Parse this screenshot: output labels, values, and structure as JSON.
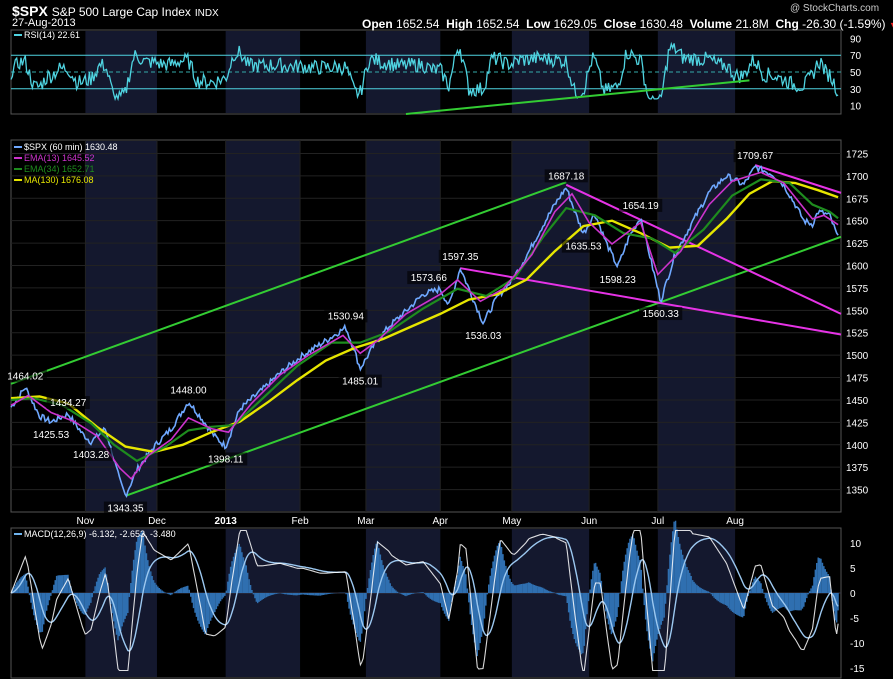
{
  "header": {
    "symbol": "$SPX",
    "name": "S&P 500 Large Cap Index",
    "exchange": "INDX",
    "date": "27-Aug-2013",
    "watermark": "@ StockCharts.com",
    "quote": {
      "open_label": "Open",
      "open": "1652.54",
      "high_label": "High",
      "high": "1652.54",
      "low_label": "Low",
      "low": "1629.05",
      "close_label": "Close",
      "close": "1630.48",
      "volume_label": "Volume",
      "volume": "21.8M",
      "chg_label": "Chg",
      "chg": "-26.30 (-1.59%)",
      "chg_marker": "▼"
    }
  },
  "colors": {
    "price": "#6fa8ff",
    "ema13": "#cc33cc",
    "ema34": "#1e8c1e",
    "ma130": "#e6e600",
    "channel": "#33cc33",
    "trend": "#e633e6",
    "rsi": "#4fd3e0",
    "macd": "#6fb3ee",
    "grid": "#222",
    "band": "#14182e"
  },
  "chart_data": [
    {
      "type": "line",
      "panel": "rsi",
      "legend": "RSI(14) 22.61",
      "series": [
        {
          "name": "RSI(14)",
          "last": 22.61
        }
      ],
      "yticks": [
        10,
        30,
        50,
        70,
        90
      ],
      "ylim": [
        0,
        100
      ],
      "levels": [
        30,
        50,
        70
      ]
    },
    {
      "type": "line",
      "panel": "price",
      "legend": [
        {
          "key": "price",
          "label": "$SPX (60 min) 1630.48"
        },
        {
          "key": "ema13",
          "label": "EMA(13) 1645.52"
        },
        {
          "key": "ema34",
          "label": "EMA(34) 1652.71"
        },
        {
          "key": "ma130",
          "label": "MA(130) 1676.08"
        }
      ],
      "xlim": [
        0,
        290
      ],
      "ylim": [
        1325,
        1740
      ],
      "yticks": [
        1350,
        1375,
        1400,
        1425,
        1450,
        1475,
        1500,
        1525,
        1550,
        1575,
        1600,
        1625,
        1650,
        1675,
        1700,
        1725
      ],
      "x_labels": [
        {
          "label": "Nov",
          "x": 26,
          "bold": false
        },
        {
          "label": "Dec",
          "x": 51,
          "bold": false
        },
        {
          "label": "2013",
          "x": 75,
          "bold": true
        },
        {
          "label": "Feb",
          "x": 101,
          "bold": false
        },
        {
          "label": "Mar",
          "x": 124,
          "bold": false
        },
        {
          "label": "Apr",
          "x": 150,
          "bold": false
        },
        {
          "label": "May",
          "x": 175,
          "bold": false
        },
        {
          "label": "Jun",
          "x": 202,
          "bold": false
        },
        {
          "label": "Jul",
          "x": 226,
          "bold": false
        },
        {
          "label": "Aug",
          "x": 253,
          "bold": false
        }
      ],
      "month_bands": [
        [
          26,
          51
        ],
        [
          75,
          101
        ],
        [
          124,
          150
        ],
        [
          175,
          202
        ],
        [
          226,
          253
        ]
      ],
      "price_points": [
        [
          0,
          1442
        ],
        [
          5,
          1464.02
        ],
        [
          10,
          1432
        ],
        [
          14,
          1425.53
        ],
        [
          20,
          1434.27
        ],
        [
          25,
          1412
        ],
        [
          28,
          1403.28
        ],
        [
          33,
          1418
        ],
        [
          38,
          1360
        ],
        [
          40,
          1343.35
        ],
        [
          44,
          1372
        ],
        [
          50,
          1398
        ],
        [
          56,
          1418
        ],
        [
          62,
          1448
        ],
        [
          66,
          1432
        ],
        [
          71,
          1410
        ],
        [
          75,
          1398.11
        ],
        [
          80,
          1440
        ],
        [
          88,
          1462
        ],
        [
          94,
          1480
        ],
        [
          102,
          1500
        ],
        [
          110,
          1516
        ],
        [
          117,
          1530.94
        ],
        [
          120,
          1505
        ],
        [
          122,
          1485.01
        ],
        [
          127,
          1512
        ],
        [
          132,
          1532
        ],
        [
          138,
          1549
        ],
        [
          144,
          1568
        ],
        [
          150,
          1573.66
        ],
        [
          153,
          1555
        ],
        [
          157,
          1597.35
        ],
        [
          160,
          1574
        ],
        [
          165,
          1536.03
        ],
        [
          170,
          1565
        ],
        [
          175,
          1583
        ],
        [
          180,
          1610
        ],
        [
          185,
          1640
        ],
        [
          190,
          1668
        ],
        [
          194,
          1687.18
        ],
        [
          197,
          1660
        ],
        [
          200,
          1635.53
        ],
        [
          204,
          1658
        ],
        [
          208,
          1625
        ],
        [
          212,
          1598.23
        ],
        [
          216,
          1632
        ],
        [
          220,
          1654.19
        ],
        [
          224,
          1600
        ],
        [
          227,
          1560.33
        ],
        [
          232,
          1612
        ],
        [
          238,
          1648
        ],
        [
          244,
          1682
        ],
        [
          250,
          1700
        ],
        [
          256,
          1690
        ],
        [
          260,
          1709.67
        ],
        [
          266,
          1702
        ],
        [
          270,
          1690
        ],
        [
          274,
          1668
        ],
        [
          277,
          1650
        ],
        [
          280,
          1646
        ],
        [
          282,
          1660
        ],
        [
          286,
          1656
        ],
        [
          289,
          1630.48
        ]
      ],
      "ema13_points": [
        [
          0,
          1444
        ],
        [
          6,
          1455
        ],
        [
          14,
          1436
        ],
        [
          22,
          1426
        ],
        [
          30,
          1410
        ],
        [
          38,
          1374
        ],
        [
          42,
          1362
        ],
        [
          48,
          1388
        ],
        [
          56,
          1406
        ],
        [
          62,
          1430
        ],
        [
          70,
          1418
        ],
        [
          76,
          1414
        ],
        [
          84,
          1446
        ],
        [
          94,
          1478
        ],
        [
          104,
          1500
        ],
        [
          116,
          1522
        ],
        [
          122,
          1502
        ],
        [
          128,
          1516
        ],
        [
          138,
          1546
        ],
        [
          150,
          1568
        ],
        [
          156,
          1584
        ],
        [
          164,
          1560
        ],
        [
          172,
          1574
        ],
        [
          182,
          1612
        ],
        [
          190,
          1660
        ],
        [
          196,
          1680
        ],
        [
          202,
          1648
        ],
        [
          210,
          1624
        ],
        [
          220,
          1648
        ],
        [
          226,
          1590
        ],
        [
          234,
          1616
        ],
        [
          244,
          1668
        ],
        [
          252,
          1694
        ],
        [
          262,
          1704
        ],
        [
          270,
          1692
        ],
        [
          276,
          1668
        ],
        [
          280,
          1652
        ],
        [
          284,
          1656
        ],
        [
          289,
          1645.52
        ]
      ],
      "ema34_points": [
        [
          0,
          1450
        ],
        [
          8,
          1452
        ],
        [
          18,
          1444
        ],
        [
          28,
          1424
        ],
        [
          36,
          1400
        ],
        [
          44,
          1382
        ],
        [
          54,
          1398
        ],
        [
          62,
          1416
        ],
        [
          70,
          1420
        ],
        [
          78,
          1422
        ],
        [
          88,
          1452
        ],
        [
          100,
          1488
        ],
        [
          112,
          1514
        ],
        [
          122,
          1514
        ],
        [
          132,
          1526
        ],
        [
          144,
          1552
        ],
        [
          156,
          1574
        ],
        [
          166,
          1566
        ],
        [
          176,
          1586
        ],
        [
          186,
          1632
        ],
        [
          194,
          1664
        ],
        [
          204,
          1656
        ],
        [
          214,
          1636
        ],
        [
          224,
          1630
        ],
        [
          232,
          1614
        ],
        [
          242,
          1640
        ],
        [
          252,
          1678
        ],
        [
          262,
          1696
        ],
        [
          272,
          1692
        ],
        [
          280,
          1668
        ],
        [
          286,
          1660
        ],
        [
          289,
          1652.71
        ]
      ],
      "ma130_points": [
        [
          0,
          1452
        ],
        [
          10,
          1454
        ],
        [
          20,
          1446
        ],
        [
          30,
          1420
        ],
        [
          40,
          1398
        ],
        [
          50,
          1392
        ],
        [
          60,
          1400
        ],
        [
          70,
          1414
        ],
        [
          80,
          1426
        ],
        [
          90,
          1448
        ],
        [
          100,
          1472
        ],
        [
          110,
          1494
        ],
        [
          120,
          1508
        ],
        [
          130,
          1518
        ],
        [
          140,
          1532
        ],
        [
          150,
          1546
        ],
        [
          160,
          1562
        ],
        [
          170,
          1568
        ],
        [
          180,
          1584
        ],
        [
          190,
          1616
        ],
        [
          200,
          1644
        ],
        [
          210,
          1650
        ],
        [
          220,
          1636
        ],
        [
          230,
          1620
        ],
        [
          240,
          1622
        ],
        [
          250,
          1652
        ],
        [
          258,
          1680
        ],
        [
          266,
          1694
        ],
        [
          274,
          1692
        ],
        [
          282,
          1684
        ],
        [
          289,
          1676.08
        ]
      ],
      "channel_lines": [
        [
          [
            0,
            1468
          ],
          [
            194,
            1693
          ]
        ],
        [
          [
            40,
            1343
          ],
          [
            290,
            1632
          ]
        ]
      ],
      "trend_lines": [
        [
          [
            157,
            1597
          ],
          [
            290,
            1523
          ]
        ],
        [
          [
            194,
            1690
          ],
          [
            290,
            1546
          ]
        ],
        [
          [
            260,
            1712
          ],
          [
            290,
            1681
          ]
        ]
      ],
      "annotations": [
        {
          "text": "1464.02",
          "x": 5,
          "y": 1464.02,
          "pos": "above"
        },
        {
          "text": "1425.53",
          "x": 14,
          "y": 1425.53,
          "pos": "below"
        },
        {
          "text": "1434.27",
          "x": 20,
          "y": 1434.27,
          "pos": "above"
        },
        {
          "text": "1403.28",
          "x": 28,
          "y": 1403.28,
          "pos": "below"
        },
        {
          "text": "1343.35",
          "x": 40,
          "y": 1343.35,
          "pos": "below"
        },
        {
          "text": "1448.00",
          "x": 62,
          "y": 1448.0,
          "pos": "above"
        },
        {
          "text": "1398.11",
          "x": 75,
          "y": 1398.11,
          "pos": "below"
        },
        {
          "text": "1530.94",
          "x": 117,
          "y": 1530.94,
          "pos": "above"
        },
        {
          "text": "1485.01",
          "x": 122,
          "y": 1485.01,
          "pos": "below"
        },
        {
          "text": "1573.66",
          "x": 146,
          "y": 1573.66,
          "pos": "above"
        },
        {
          "text": "1597.35",
          "x": 157,
          "y": 1597.35,
          "pos": "above"
        },
        {
          "text": "1536.03",
          "x": 165,
          "y": 1536.03,
          "pos": "below"
        },
        {
          "text": "1687.18",
          "x": 194,
          "y": 1687.18,
          "pos": "above"
        },
        {
          "text": "1635.53",
          "x": 200,
          "y": 1635.53,
          "pos": "below"
        },
        {
          "text": "1598.23",
          "x": 212,
          "y": 1598.23,
          "pos": "below"
        },
        {
          "text": "1654.19",
          "x": 220,
          "y": 1654.19,
          "pos": "above"
        },
        {
          "text": "1560.33",
          "x": 227,
          "y": 1560.33,
          "pos": "below"
        },
        {
          "text": "1709.67",
          "x": 260,
          "y": 1709.67,
          "pos": "above"
        }
      ]
    },
    {
      "type": "line",
      "panel": "macd",
      "legend": "MACD(12,26,9) -6.132, -2.653, -3.480",
      "series": [
        {
          "name": "MACD(12,26,9)",
          "last": -6.132
        },
        {
          "name": "signal",
          "last": -2.653
        },
        {
          "name": "histogram",
          "last": -3.48
        }
      ],
      "yticks": [
        -15,
        -10,
        -5,
        0,
        5,
        10
      ],
      "ylim": [
        -17,
        13
      ]
    }
  ]
}
